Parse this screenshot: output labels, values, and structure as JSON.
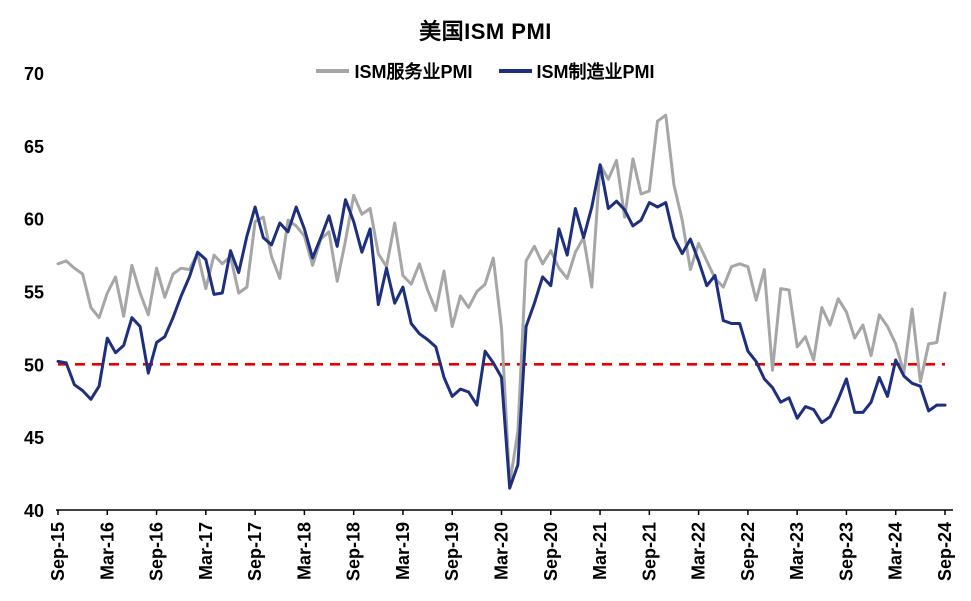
{
  "chart_data": {
    "type": "line",
    "title": "美国ISM PMI",
    "legend_position": "top",
    "grid": false,
    "ylim": [
      40,
      70
    ],
    "y_ticks": [
      40,
      45,
      50,
      55,
      60,
      65,
      70
    ],
    "x_tick_step": 6,
    "x": [
      "Sep-15",
      "Oct-15",
      "Nov-15",
      "Dec-15",
      "Jan-16",
      "Feb-16",
      "Mar-16",
      "Apr-16",
      "May-16",
      "Jun-16",
      "Jul-16",
      "Aug-16",
      "Sep-16",
      "Oct-16",
      "Nov-16",
      "Dec-16",
      "Jan-17",
      "Feb-17",
      "Mar-17",
      "Apr-17",
      "May-17",
      "Jun-17",
      "Jul-17",
      "Aug-17",
      "Sep-17",
      "Oct-17",
      "Nov-17",
      "Dec-17",
      "Jan-18",
      "Feb-18",
      "Mar-18",
      "Apr-18",
      "May-18",
      "Jun-18",
      "Jul-18",
      "Aug-18",
      "Sep-18",
      "Oct-18",
      "Nov-18",
      "Dec-18",
      "Jan-19",
      "Feb-19",
      "Mar-19",
      "Apr-19",
      "May-19",
      "Jun-19",
      "Jul-19",
      "Aug-19",
      "Sep-19",
      "Oct-19",
      "Nov-19",
      "Dec-19",
      "Jan-20",
      "Feb-20",
      "Mar-20",
      "Apr-20",
      "May-20",
      "Jun-20",
      "Jul-20",
      "Aug-20",
      "Sep-20",
      "Oct-20",
      "Nov-20",
      "Dec-20",
      "Jan-21",
      "Feb-21",
      "Mar-21",
      "Apr-21",
      "May-21",
      "Jun-21",
      "Jul-21",
      "Aug-21",
      "Sep-21",
      "Oct-21",
      "Nov-21",
      "Dec-21",
      "Jan-22",
      "Feb-22",
      "Mar-22",
      "Apr-22",
      "May-22",
      "Jun-22",
      "Jul-22",
      "Aug-22",
      "Sep-22",
      "Oct-22",
      "Nov-22",
      "Dec-22",
      "Jan-23",
      "Feb-23",
      "Mar-23",
      "Apr-23",
      "May-23",
      "Jun-23",
      "Jul-23",
      "Aug-23",
      "Sep-23",
      "Oct-23",
      "Nov-23",
      "Dec-23",
      "Jan-24",
      "Feb-24",
      "Mar-24",
      "Apr-24",
      "May-24",
      "Jun-24",
      "Jul-24",
      "Aug-24",
      "Sep-24"
    ],
    "series": [
      {
        "id": "services",
        "name": "ISM服务业PMI",
        "color": "#a6a6a6",
        "values": [
          56.9,
          57.1,
          56.6,
          56.2,
          53.9,
          53.2,
          54.9,
          56.0,
          53.3,
          56.8,
          54.9,
          53.4,
          56.6,
          54.6,
          56.2,
          56.6,
          56.5,
          57.6,
          55.2,
          57.5,
          56.9,
          57.4,
          54.9,
          55.3,
          59.8,
          60.1,
          57.4,
          55.9,
          59.9,
          59.5,
          58.8,
          56.8,
          58.6,
          59.1,
          55.7,
          58.5,
          61.6,
          60.3,
          60.7,
          57.6,
          56.7,
          59.7,
          56.1,
          55.5,
          56.9,
          55.1,
          53.7,
          56.4,
          52.6,
          54.7,
          53.9,
          55.0,
          55.5,
          57.3,
          52.5,
          41.8,
          45.4,
          57.1,
          58.1,
          56.9,
          57.8,
          56.6,
          55.9,
          57.7,
          58.7,
          55.3,
          63.7,
          62.7,
          64.0,
          60.1,
          64.1,
          61.7,
          61.9,
          66.7,
          67.1,
          62.3,
          59.9,
          56.5,
          58.3,
          57.1,
          55.9,
          55.3,
          56.7,
          56.9,
          56.7,
          54.4,
          56.5,
          49.6,
          55.2,
          55.1,
          51.2,
          51.9,
          50.3,
          53.9,
          52.7,
          54.5,
          53.6,
          51.8,
          52.7,
          50.6,
          53.4,
          52.6,
          51.4,
          49.4,
          53.8,
          48.8,
          51.4,
          51.5,
          54.9
        ]
      },
      {
        "id": "manufacturing",
        "name": "ISM制造业PMI",
        "color": "#1e2f7e",
        "values": [
          50.2,
          50.1,
          48.6,
          48.2,
          47.6,
          48.5,
          51.8,
          50.8,
          51.3,
          53.2,
          52.6,
          49.4,
          51.5,
          51.9,
          53.2,
          54.7,
          56.0,
          57.7,
          57.2,
          54.8,
          54.9,
          57.8,
          56.3,
          58.8,
          60.8,
          58.7,
          58.2,
          59.7,
          59.1,
          60.8,
          59.3,
          57.3,
          58.7,
          60.2,
          58.1,
          61.3,
          59.8,
          57.7,
          59.3,
          54.1,
          56.6,
          54.2,
          55.3,
          52.8,
          52.1,
          51.7,
          51.2,
          49.1,
          47.8,
          48.3,
          48.1,
          47.2,
          50.9,
          50.1,
          49.1,
          41.5,
          43.1,
          52.6,
          54.2,
          56.0,
          55.4,
          59.3,
          57.5,
          60.7,
          58.7,
          60.8,
          63.7,
          60.7,
          61.2,
          60.6,
          59.5,
          59.9,
          61.1,
          60.8,
          61.1,
          58.7,
          57.6,
          58.6,
          57.1,
          55.4,
          56.1,
          53.0,
          52.8,
          52.8,
          50.9,
          50.2,
          49.0,
          48.4,
          47.4,
          47.7,
          46.3,
          47.1,
          46.9,
          46.0,
          46.4,
          47.6,
          49.0,
          46.7,
          46.7,
          47.4,
          49.1,
          47.8,
          50.3,
          49.2,
          48.7,
          48.5,
          46.8,
          47.2,
          47.2
        ]
      }
    ],
    "reference_line": {
      "value": 50,
      "color": "#e60000",
      "style": "dashed"
    }
  }
}
